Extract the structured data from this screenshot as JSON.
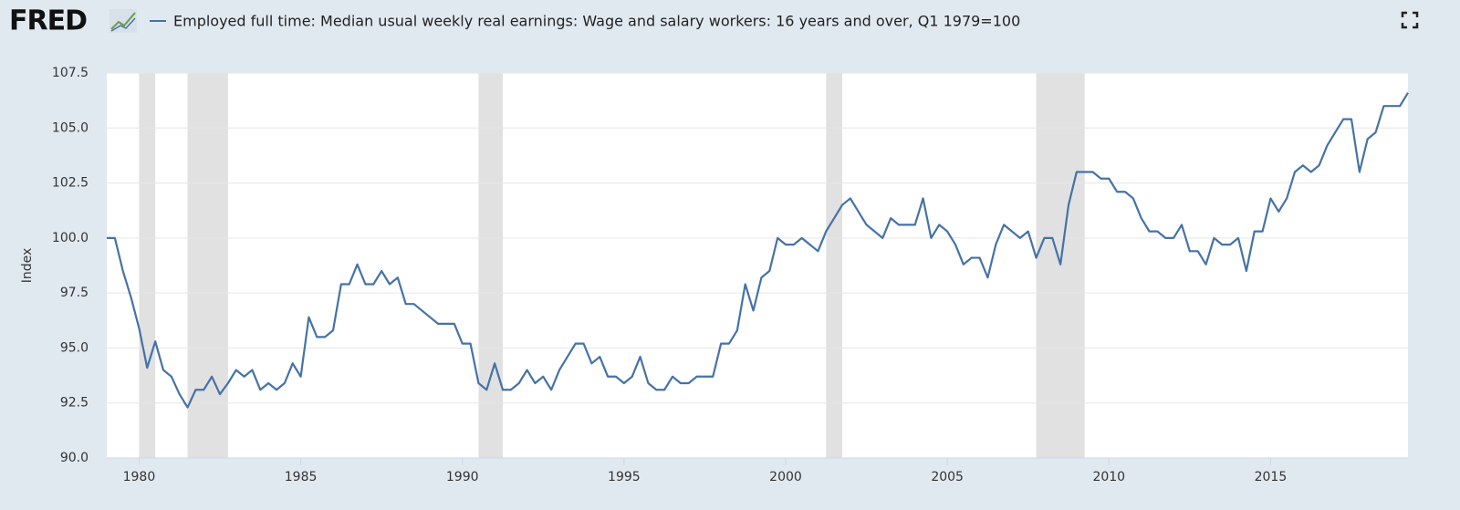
{
  "header": {
    "logo": "FRED"
  },
  "chart_data": {
    "type": "line",
    "ylabel": "Index",
    "x": [
      1979,
      1979.25,
      1979.5,
      1979.75,
      1980,
      1980.25,
      1980.5,
      1980.75,
      1981,
      1981.25,
      1981.5,
      1981.75,
      1982,
      1982.25,
      1982.5,
      1982.75,
      1983,
      1983.25,
      1983.5,
      1983.75,
      1984,
      1984.25,
      1984.5,
      1984.75,
      1985,
      1985.25,
      1985.5,
      1985.75,
      1986,
      1986.25,
      1986.5,
      1986.75,
      1987,
      1987.25,
      1987.5,
      1987.75,
      1988,
      1988.25,
      1988.5,
      1988.75,
      1989,
      1989.25,
      1989.5,
      1989.75,
      1990,
      1990.25,
      1990.5,
      1990.75,
      1991,
      1991.25,
      1991.5,
      1991.75,
      1992,
      1992.25,
      1992.5,
      1992.75,
      1993,
      1993.25,
      1993.5,
      1993.75,
      1994,
      1994.25,
      1994.5,
      1994.75,
      1995,
      1995.25,
      1995.5,
      1995.75,
      1996,
      1996.25,
      1996.5,
      1996.75,
      1997,
      1997.25,
      1997.5,
      1997.75,
      1998,
      1998.25,
      1998.5,
      1998.75,
      1999,
      1999.25,
      1999.5,
      1999.75,
      2000,
      2000.25,
      2000.5,
      2000.75,
      2001,
      2001.25,
      2001.5,
      2001.75,
      2002,
      2002.25,
      2002.5,
      2002.75,
      2003,
      2003.25,
      2003.5,
      2003.75,
      2004,
      2004.25,
      2004.5,
      2004.75,
      2005,
      2005.25,
      2005.5,
      2005.75,
      2006,
      2006.25,
      2006.5,
      2006.75,
      2007,
      2007.25,
      2007.5,
      2007.75,
      2008,
      2008.25,
      2008.5,
      2008.75,
      2009,
      2009.25,
      2009.5,
      2009.75,
      2010,
      2010.25,
      2010.5,
      2010.75,
      2011,
      2011.25,
      2011.5,
      2011.75,
      2012,
      2012.25,
      2012.5,
      2012.75,
      2013,
      2013.25,
      2013.5,
      2013.75,
      2014,
      2014.25,
      2014.5,
      2014.75,
      2015,
      2015.25,
      2015.5,
      2015.75,
      2016,
      2016.25,
      2016.5,
      2016.75,
      2017,
      2017.25,
      2017.5,
      2017.75,
      2018,
      2018.25,
      2018.5,
      2018.75,
      2019,
      2019.25
    ],
    "series": [
      {
        "name": "Employed full time: Median usual weekly real earnings: Wage and salary workers: 16 years and over, Q1 1979=100",
        "color": "#4572a7",
        "values": [
          100,
          100,
          98.5,
          97.3,
          95.9,
          94.1,
          95.3,
          94.0,
          93.7,
          92.9,
          92.3,
          93.1,
          93.1,
          93.7,
          92.9,
          93.4,
          94.0,
          93.7,
          94.0,
          93.1,
          93.4,
          93.1,
          93.4,
          94.3,
          93.7,
          96.4,
          95.5,
          95.5,
          95.8,
          97.9,
          97.9,
          98.8,
          97.9,
          97.9,
          98.5,
          97.9,
          98.2,
          97.0,
          97.0,
          96.7,
          96.4,
          96.1,
          96.1,
          96.1,
          95.2,
          95.2,
          93.4,
          93.1,
          94.3,
          93.1,
          93.1,
          93.4,
          94.0,
          93.4,
          93.7,
          93.1,
          94.0,
          94.6,
          95.2,
          95.2,
          94.3,
          94.6,
          93.7,
          93.7,
          93.4,
          93.7,
          94.6,
          93.4,
          93.1,
          93.1,
          93.7,
          93.4,
          93.4,
          93.7,
          93.7,
          93.7,
          95.2,
          95.2,
          95.8,
          97.9,
          96.7,
          98.2,
          98.5,
          100.0,
          99.7,
          99.7,
          100.0,
          99.7,
          99.4,
          100.3,
          100.9,
          101.5,
          101.8,
          101.2,
          100.6,
          100.3,
          100.0,
          100.9,
          100.6,
          100.6,
          100.6,
          101.8,
          100.0,
          100.6,
          100.3,
          99.7,
          98.8,
          99.1,
          99.1,
          98.2,
          99.7,
          100.6,
          100.3,
          100.0,
          100.3,
          99.1,
          100.0,
          100.0,
          98.8,
          101.5,
          103.0,
          103.0,
          103.0,
          102.7,
          102.7,
          102.1,
          102.1,
          101.8,
          100.9,
          100.3,
          100.3,
          100.0,
          100.0,
          100.6,
          99.4,
          99.4,
          98.8,
          100.0,
          99.7,
          99.7,
          100.0,
          98.5,
          100.3,
          100.3,
          101.8,
          101.2,
          101.8,
          103.0,
          103.3,
          103.0,
          103.3,
          104.2,
          104.8,
          105.4,
          105.4,
          103.0,
          104.5,
          104.8,
          106.0,
          106.0,
          106.0,
          106.6
        ]
      }
    ],
    "recessions": [
      [
        1980,
        1980.5
      ],
      [
        1981.5,
        1982.75
      ],
      [
        1990.5,
        1991.25
      ],
      [
        2001.25,
        2001.75
      ],
      [
        2007.75,
        2009.25
      ]
    ],
    "recession_color": "#e1e1e1",
    "xlim": [
      1979,
      2019.25
    ],
    "xticks": [
      1980,
      1985,
      1990,
      1995,
      2000,
      2005,
      2010,
      2015
    ],
    "ylim": [
      90,
      107.5
    ],
    "yticks": [
      {
        "value": 90,
        "label": "90.0"
      },
      92.5,
      {
        "value": 95,
        "label": "95.0"
      },
      97.5,
      {
        "value": 100,
        "label": "100.0"
      },
      102.5,
      {
        "value": 105,
        "label": "105.0"
      },
      107.5
    ],
    "grid": true
  }
}
